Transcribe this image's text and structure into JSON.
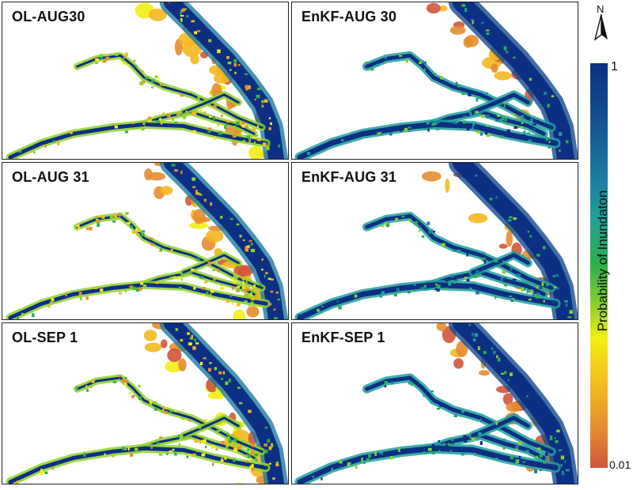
{
  "figure": {
    "panels": [
      {
        "id": "ol-aug30",
        "title": "OL-AUG30",
        "method": "OL",
        "date": "AUG30"
      },
      {
        "id": "enkf-aug30",
        "title": "EnKF-AUG 30",
        "method": "EnKF",
        "date": "AUG 30"
      },
      {
        "id": "ol-aug31",
        "title": "OL-AUG 31",
        "method": "OL",
        "date": "AUG 31"
      },
      {
        "id": "enkf-aug31",
        "title": "EnKF-AUG 31",
        "method": "EnKF",
        "date": "AUG 31"
      },
      {
        "id": "ol-sep1",
        "title": "OL-SEP 1",
        "method": "OL",
        "date": "SEP 1"
      },
      {
        "id": "enkf-sep1",
        "title": "EnKF-SEP 1",
        "method": "EnKF",
        "date": "SEP 1"
      }
    ]
  },
  "legend": {
    "title": "Probability of Inundaton",
    "max_label": "1",
    "min_label": "0.01",
    "north_label": "N",
    "colors": [
      "#0d2f83",
      "#124b8e",
      "#1c7ba0",
      "#1fa09a",
      "#2db04a",
      "#8ed12b",
      "#f2ee16",
      "#f3b821",
      "#e68d2f",
      "#d2553a"
    ]
  }
}
